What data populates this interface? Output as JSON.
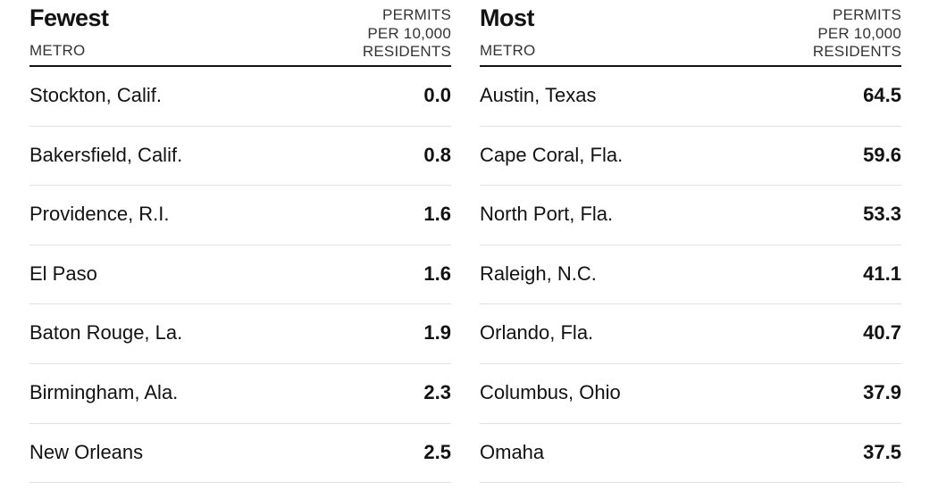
{
  "fewest": {
    "title": "Fewest",
    "metro_label": "METRO",
    "permits_label": [
      "PERMITS",
      "PER 10,000",
      "RESIDENTS"
    ],
    "rows": [
      {
        "metro": "Stockton, Calif.",
        "value": "0.0"
      },
      {
        "metro": "Bakersfield, Calif.",
        "value": "0.8"
      },
      {
        "metro": "Providence, R.I.",
        "value": "1.6"
      },
      {
        "metro": "El Paso",
        "value": "1.6"
      },
      {
        "metro": "Baton Rouge, La.",
        "value": "1.9"
      },
      {
        "metro": "Birmingham, Ala.",
        "value": "2.3"
      },
      {
        "metro": "New Orleans",
        "value": "2.5"
      }
    ]
  },
  "most": {
    "title": "Most",
    "metro_label": "METRO",
    "permits_label": [
      "PERMITS",
      "PER 10,000",
      "RESIDENTS"
    ],
    "rows": [
      {
        "metro": "Austin, Texas",
        "value": "64.5"
      },
      {
        "metro": "Cape Coral, Fla.",
        "value": "59.6"
      },
      {
        "metro": "North Port, Fla.",
        "value": "53.3"
      },
      {
        "metro": "Raleigh, N.C.",
        "value": "41.1"
      },
      {
        "metro": "Orlando, Fla.",
        "value": "40.7"
      },
      {
        "metro": "Columbus, Ohio",
        "value": "37.9"
      },
      {
        "metro": "Omaha",
        "value": "37.5"
      }
    ]
  }
}
